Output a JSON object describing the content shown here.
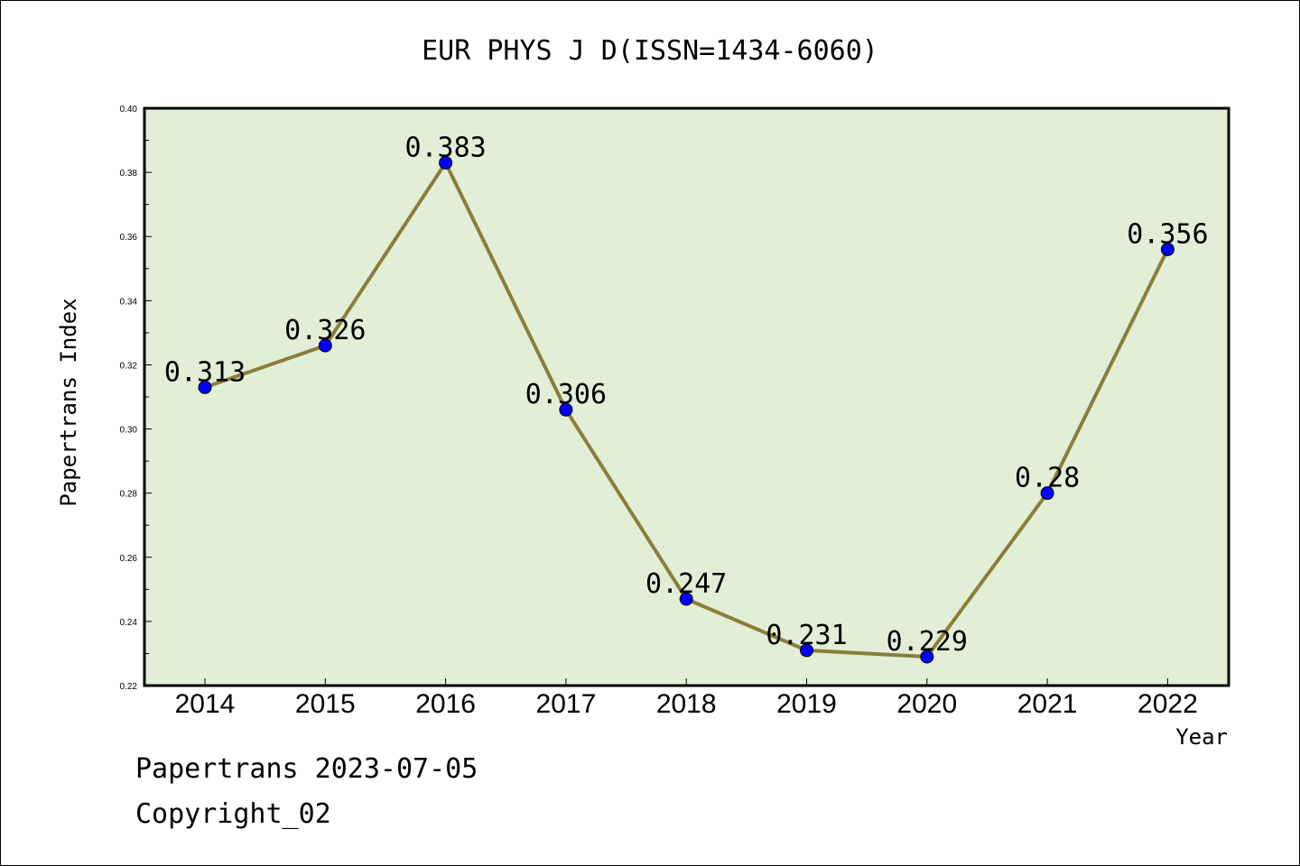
{
  "chart_data": {
    "type": "line",
    "title": "EUR PHYS J D(ISSN=1434-6060)",
    "xlabel": "Year",
    "ylabel": "Papertrans Index",
    "categories": [
      "2014",
      "2015",
      "2016",
      "2017",
      "2018",
      "2019",
      "2020",
      "2021",
      "2022"
    ],
    "values": [
      0.313,
      0.326,
      0.383,
      0.306,
      0.247,
      0.231,
      0.229,
      0.28,
      0.356
    ],
    "value_labels": [
      "0.313",
      "0.326",
      "0.383",
      "0.306",
      "0.247",
      "0.231",
      "0.229",
      "0.28",
      "0.356"
    ],
    "ylim": [
      0.22,
      0.4
    ],
    "yticks": [
      "0.22",
      "0.24",
      "0.26",
      "0.28",
      "0.30",
      "0.32",
      "0.34",
      "0.36",
      "0.38",
      "0.40"
    ],
    "grid": false,
    "colors": {
      "plot_background": "#e2efd6",
      "line": "#8b7d3a",
      "marker": "#0000ff"
    }
  },
  "footer": {
    "date_line": "Papertrans 2023-07-05",
    "copyright": "Copyright_02"
  }
}
